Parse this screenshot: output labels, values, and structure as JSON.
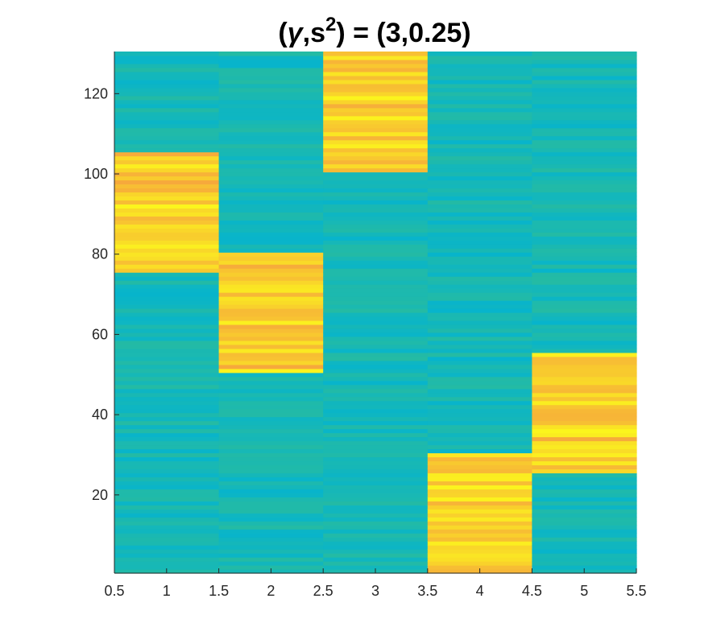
{
  "chart_data": {
    "type": "heatmap",
    "title": {
      "open": "(",
      "gamma": "γ",
      "mid": ",s",
      "sup": "2",
      "rest": ") = (3,0.25)"
    },
    "xlabel": "",
    "ylabel": "",
    "xlim": [
      0.5,
      5.5
    ],
    "ylim": [
      0.5,
      130.5
    ],
    "x_ticks": [
      0.5,
      1,
      1.5,
      2,
      2.5,
      3,
      3.5,
      4,
      4.5,
      5,
      5.5
    ],
    "x_tick_labels": [
      "0.5",
      "1",
      "1.5",
      "2",
      "2.5",
      "3",
      "3.5",
      "4",
      "4.5",
      "5",
      "5.5"
    ],
    "y_ticks": [
      20,
      40,
      60,
      80,
      100,
      120
    ],
    "y_tick_labels": [
      "20",
      "40",
      "60",
      "80",
      "100",
      "120"
    ],
    "grid": false,
    "colormap": "parula",
    "columns": [
      1,
      2,
      3,
      4,
      5
    ],
    "rows": 130,
    "high_blocks": [
      {
        "column": 1,
        "row_start": 76,
        "row_end": 105
      },
      {
        "column": 2,
        "row_start": 51,
        "row_end": 80
      },
      {
        "column": 3,
        "row_start": 101,
        "row_end": 130
      },
      {
        "column": 4,
        "row_start": 1,
        "row_end": 30
      },
      {
        "column": 5,
        "row_start": 26,
        "row_end": 55
      }
    ],
    "high_value_range": [
      0.78,
      0.98
    ],
    "low_value_range": [
      0.5,
      0.64
    ],
    "colors": {
      "low_min": "#07b4cc",
      "low_max": "#2ebd96",
      "high_min": "#f6a93c",
      "high_max": "#fbf51d"
    }
  }
}
